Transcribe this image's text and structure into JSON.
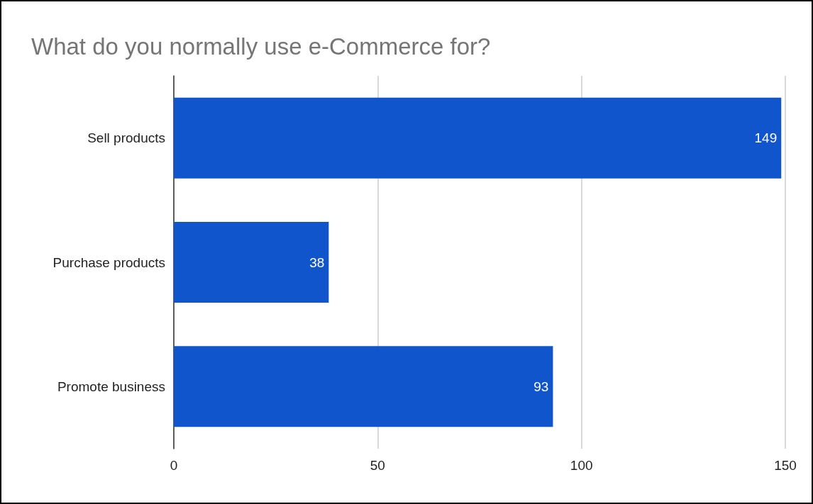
{
  "chart_data": {
    "type": "bar",
    "orientation": "horizontal",
    "title": "What do you normally use e-Commerce for?",
    "categories": [
      "Sell products",
      "Purchase products",
      "Promote business"
    ],
    "values": [
      149,
      38,
      93
    ],
    "color": "#1155cc",
    "xlim": [
      0,
      150
    ],
    "xticks": [
      0,
      50,
      100,
      150
    ],
    "grid": "x",
    "data_labels": true
  }
}
